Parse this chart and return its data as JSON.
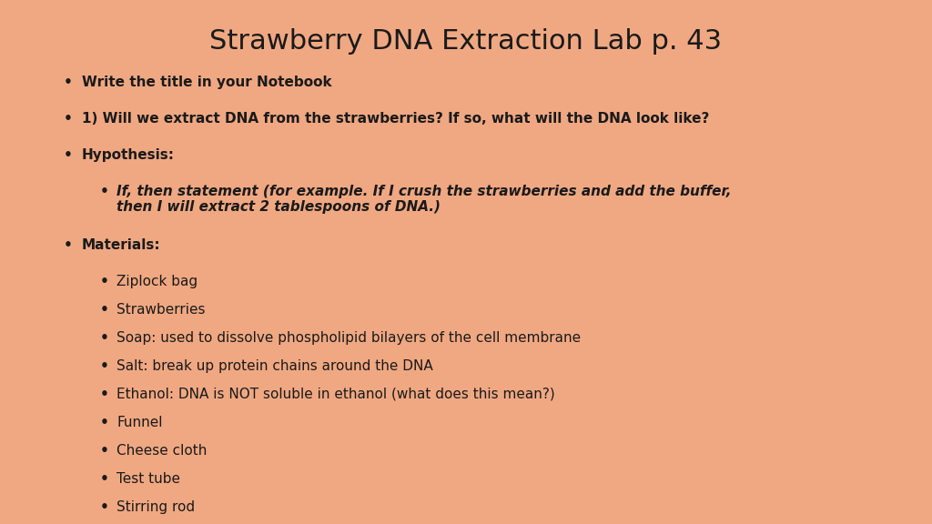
{
  "title": "Strawberry DNA Extraction Lab p. 43",
  "background_color": "#F0A882",
  "text_color": "#1a1a1a",
  "title_fontsize": 22,
  "body_fontsize": 11,
  "bullet_char": "•",
  "items": [
    {
      "level": 1,
      "text": "Write the title in your Notebook",
      "bold": true,
      "italic": false
    },
    {
      "level": 1,
      "text": "1) Will we extract DNA from the strawberries? If so, what will the DNA look like?",
      "bold": true,
      "italic": false
    },
    {
      "level": 1,
      "text": "Hypothesis:",
      "bold": true,
      "italic": false
    },
    {
      "level": 2,
      "text": "If, then statement (for example. If I crush the strawberries and add the buffer,\nthen I will extract 2 tablespoons of DNA.)",
      "bold": true,
      "italic": true
    },
    {
      "level": 1,
      "text": "Materials:",
      "bold": true,
      "italic": false
    },
    {
      "level": 2,
      "text": "Ziplock bag",
      "bold": false,
      "italic": false
    },
    {
      "level": 2,
      "text": "Strawberries",
      "bold": false,
      "italic": false
    },
    {
      "level": 2,
      "text": "Soap: used to dissolve phospholipid bilayers of the cell membrane",
      "bold": false,
      "italic": false
    },
    {
      "level": 2,
      "text": "Salt: break up protein chains around the DNA",
      "bold": false,
      "italic": false
    },
    {
      "level": 2,
      "text": "Ethanol: DNA is NOT soluble in ethanol (what does this mean?)",
      "bold": false,
      "italic": false
    },
    {
      "level": 2,
      "text": "Funnel",
      "bold": false,
      "italic": false
    },
    {
      "level": 2,
      "text": "Cheese cloth",
      "bold": false,
      "italic": false
    },
    {
      "level": 2,
      "text": "Test tube",
      "bold": false,
      "italic": false
    },
    {
      "level": 2,
      "text": "Stirring rod",
      "bold": false,
      "italic": false
    }
  ]
}
